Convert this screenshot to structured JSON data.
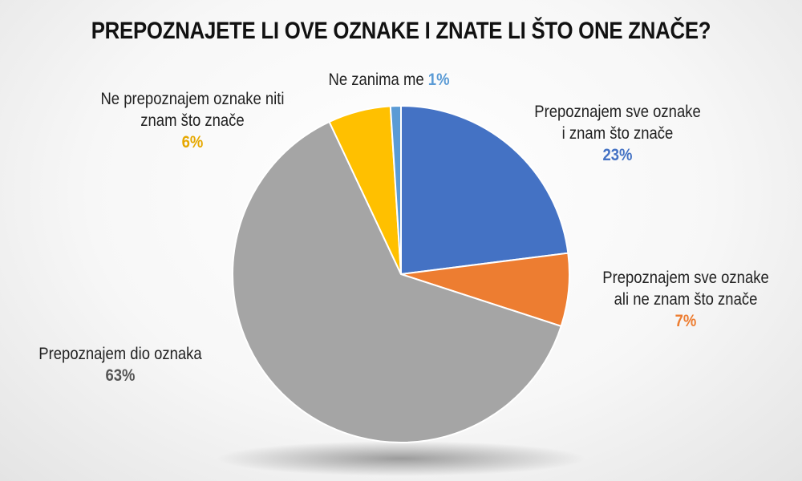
{
  "chart_data": {
    "type": "pie",
    "title": "PREPOZNAJETE LI OVE OZNAKE I ZNATE LI ŠTO ONE ZNAČE?",
    "slices": [
      {
        "label_lines": [
          "Prepoznajem sve oznake",
          "i znam što znače"
        ],
        "value": 23,
        "value_label": "23%",
        "color": "#4472C4"
      },
      {
        "label_lines": [
          "Prepoznajem sve oznake",
          "ali ne znam što znače"
        ],
        "value": 7,
        "value_label": "7%",
        "color": "#ED7D31"
      },
      {
        "label_lines": [
          "Prepoznajem dio oznaka"
        ],
        "value": 63,
        "value_label": "63%",
        "color": "#A5A5A5"
      },
      {
        "label_lines": [
          "Ne prepoznajem oznake niti",
          "znam što znače"
        ],
        "value": 6,
        "value_label": "6%",
        "color": "#FFC000"
      },
      {
        "label_lines": [
          "Ne zanima me"
        ],
        "value": 1,
        "value_label": "1%",
        "color": "#5B9BD5"
      }
    ]
  },
  "colors": {
    "text": "#222222",
    "pct_grey_label": "#555555",
    "shadow": "#999999"
  }
}
